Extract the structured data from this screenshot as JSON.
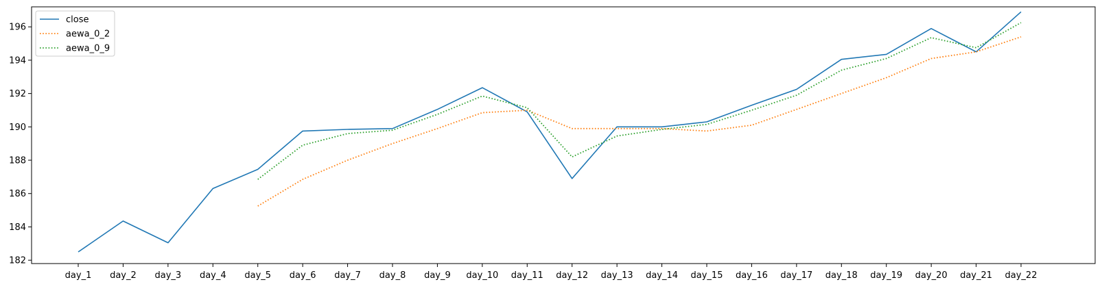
{
  "chart_data": {
    "type": "line",
    "title": "",
    "xlabel": "",
    "ylabel": "",
    "categories": [
      "day_1",
      "day_2",
      "day_3",
      "day_4",
      "day_5",
      "day_6",
      "day_7",
      "day_8",
      "day_9",
      "day_10",
      "day_11",
      "day_12",
      "day_13",
      "day_14",
      "day_15",
      "day_16",
      "day_17",
      "day_18",
      "day_19",
      "day_20",
      "day_21",
      "day_22"
    ],
    "ylim": [
      181.8,
      197.2
    ],
    "yticks": [
      182,
      184,
      186,
      188,
      190,
      192,
      194,
      196
    ],
    "grid": false,
    "legend_position": "upper left",
    "series": [
      {
        "name": "close",
        "color": "#1f77b4",
        "style": "solid",
        "values": [
          182.5,
          184.35,
          183.05,
          186.3,
          187.45,
          189.75,
          189.85,
          189.9,
          191.05,
          192.35,
          190.9,
          186.9,
          190.0,
          190.0,
          190.3,
          191.3,
          192.25,
          194.05,
          194.35,
          195.9,
          194.5,
          196.9
        ]
      },
      {
        "name": "aewa_0_2",
        "color": "#ff7f0e",
        "style": "dotted",
        "values": [
          null,
          null,
          null,
          null,
          185.25,
          186.85,
          188.0,
          189.0,
          189.9,
          190.85,
          191.0,
          189.9,
          189.9,
          189.9,
          189.75,
          190.1,
          191.05,
          192.0,
          192.95,
          194.1,
          194.5,
          195.4
        ]
      },
      {
        "name": "aewa_0_9",
        "color": "#2ca02c",
        "style": "dotted",
        "values": [
          null,
          null,
          null,
          null,
          186.85,
          188.9,
          189.6,
          189.8,
          190.75,
          191.85,
          191.15,
          188.2,
          189.45,
          189.85,
          190.15,
          191.0,
          191.9,
          193.4,
          194.1,
          195.35,
          194.75,
          196.25
        ]
      }
    ]
  }
}
